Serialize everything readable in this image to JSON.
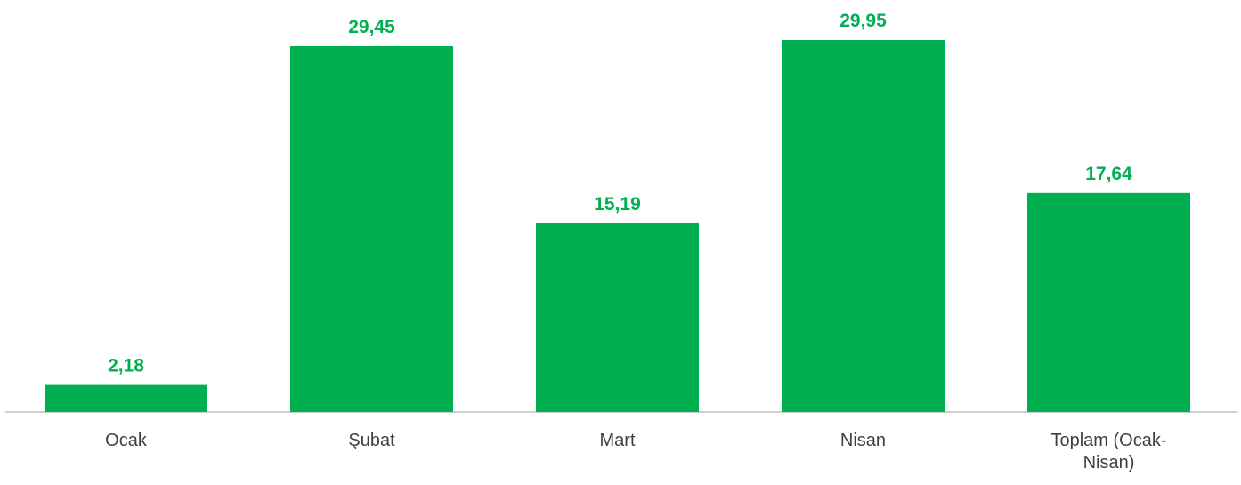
{
  "chart_data": {
    "type": "bar",
    "categories": [
      "Ocak",
      "Şubat",
      "Mart",
      "Nisan",
      "Toplam (Ocak-Nisan)"
    ],
    "values": [
      2.18,
      29.45,
      15.19,
      29.95,
      17.64
    ],
    "value_labels": [
      "2,18",
      "29,45",
      "15,19",
      "29,95",
      "17,64"
    ],
    "color": "#00b050"
  }
}
